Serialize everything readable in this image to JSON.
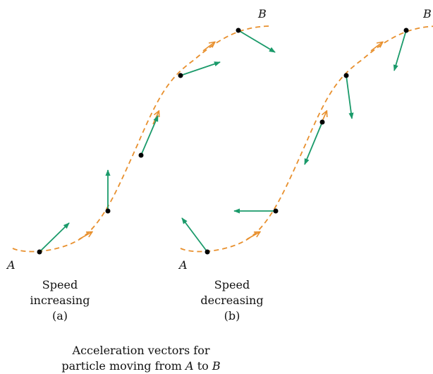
{
  "panel_a": {
    "start_label": "A",
    "end_label": "B",
    "caption_line1": "Speed",
    "caption_line2": "increasing",
    "tag": "(a)"
  },
  "panel_b": {
    "start_label": "A",
    "end_label": "B",
    "caption_line1": "Speed",
    "caption_line2": "decreasing",
    "tag": "(b)"
  },
  "figure_caption": {
    "line1": "Acceleration vectors for",
    "line2_prefix": "particle moving from ",
    "line2_a": "A",
    "line2_mid": " to ",
    "line2_b": "B"
  },
  "colors": {
    "path": "#e8902e",
    "vector": "#1a9a6a",
    "point": "#000000"
  }
}
